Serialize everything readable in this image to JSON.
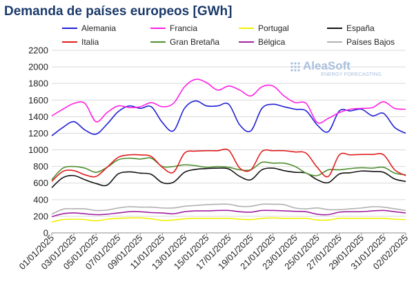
{
  "chart_data": {
    "type": "line",
    "title": "Demanda de países europeos [GWh]",
    "xlabel": "",
    "ylabel": "",
    "ylim": [
      0,
      2200
    ],
    "yticks": [
      0,
      200,
      400,
      600,
      800,
      1000,
      1200,
      1400,
      1600,
      1800,
      2000,
      2200
    ],
    "xtick_labels": [
      "01/01/2025",
      "03/01/2025",
      "05/01/2025",
      "07/01/2025",
      "09/01/2025",
      "11/01/2025",
      "13/01/2025",
      "15/01/2025",
      "17/01/2025",
      "19/01/2025",
      "21/01/2025",
      "23/01/2025",
      "25/01/2025",
      "27/01/2025",
      "29/01/2025",
      "31/01/2025",
      "02/02/2025"
    ],
    "x": [
      "01/01/2025",
      "02/01/2025",
      "03/01/2025",
      "04/01/2025",
      "05/01/2025",
      "06/01/2025",
      "07/01/2025",
      "08/01/2025",
      "09/01/2025",
      "10/01/2025",
      "11/01/2025",
      "12/01/2025",
      "13/01/2025",
      "14/01/2025",
      "15/01/2025",
      "16/01/2025",
      "17/01/2025",
      "18/01/2025",
      "19/01/2025",
      "20/01/2025",
      "21/01/2025",
      "22/01/2025",
      "23/01/2025",
      "24/01/2025",
      "25/01/2025",
      "26/01/2025",
      "27/01/2025",
      "28/01/2025",
      "29/01/2025",
      "30/01/2025",
      "31/01/2025",
      "01/02/2025",
      "02/02/2025"
    ],
    "grid": true,
    "legend_position": "top",
    "watermark": {
      "main": "AleaSoft",
      "sub": "ENERGY FORECASTING"
    },
    "series": [
      {
        "name": "Alemania",
        "color": "#1f1fd6",
        "values": [
          1170,
          1270,
          1340,
          1240,
          1190,
          1310,
          1460,
          1530,
          1500,
          1520,
          1330,
          1230,
          1500,
          1590,
          1530,
          1530,
          1550,
          1300,
          1230,
          1500,
          1550,
          1520,
          1490,
          1470,
          1300,
          1220,
          1470,
          1470,
          1490,
          1410,
          1440,
          1270,
          1200
        ]
      },
      {
        "name": "Francia",
        "color": "#ff1ee6",
        "values": [
          1410,
          1490,
          1560,
          1560,
          1340,
          1450,
          1530,
          1510,
          1520,
          1570,
          1520,
          1560,
          1760,
          1850,
          1810,
          1720,
          1770,
          1720,
          1650,
          1760,
          1770,
          1650,
          1570,
          1560,
          1330,
          1380,
          1450,
          1490,
          1500,
          1510,
          1580,
          1500,
          1490
        ]
      },
      {
        "name": "Portugal",
        "color": "#f0f000",
        "values": [
          130,
          160,
          165,
          160,
          145,
          165,
          175,
          180,
          180,
          170,
          150,
          155,
          170,
          175,
          175,
          175,
          175,
          165,
          160,
          175,
          180,
          175,
          175,
          175,
          155,
          155,
          175,
          175,
          175,
          175,
          175,
          165,
          160
        ]
      },
      {
        "name": "España",
        "color": "#111111",
        "values": [
          545,
          665,
          690,
          640,
          595,
          575,
          710,
          735,
          720,
          705,
          605,
          610,
          730,
          765,
          775,
          780,
          770,
          680,
          640,
          760,
          780,
          750,
          730,
          720,
          640,
          605,
          710,
          725,
          745,
          740,
          730,
          650,
          620
        ]
      },
      {
        "name": "Italia",
        "color": "#e01c1c",
        "values": [
          620,
          740,
          750,
          700,
          680,
          790,
          910,
          940,
          940,
          920,
          790,
          730,
          960,
          985,
          990,
          990,
          995,
          780,
          760,
          980,
          990,
          990,
          975,
          960,
          790,
          680,
          940,
          940,
          945,
          945,
          940,
          760,
          690
        ]
      },
      {
        "name": "Gran Bretaña",
        "color": "#4f8f31",
        "values": [
          640,
          780,
          800,
          780,
          730,
          790,
          880,
          900,
          890,
          900,
          800,
          800,
          820,
          810,
          790,
          800,
          790,
          760,
          760,
          850,
          840,
          840,
          800,
          720,
          690,
          760,
          760,
          775,
          785,
          780,
          790,
          720,
          700
        ]
      },
      {
        "name": "Bélgica",
        "color": "#a020a0",
        "values": [
          195,
          230,
          240,
          230,
          220,
          225,
          240,
          255,
          255,
          245,
          240,
          230,
          255,
          265,
          265,
          270,
          270,
          255,
          250,
          270,
          270,
          265,
          260,
          255,
          225,
          220,
          250,
          255,
          255,
          265,
          270,
          255,
          240
        ]
      },
      {
        "name": "Países Bajos",
        "color": "#b0b0b0",
        "values": [
          225,
          285,
          290,
          290,
          270,
          275,
          300,
          315,
          310,
          310,
          300,
          300,
          320,
          330,
          340,
          345,
          345,
          320,
          320,
          345,
          345,
          340,
          300,
          290,
          300,
          280,
          280,
          290,
          300,
          315,
          310,
          290,
          270
        ]
      }
    ]
  }
}
